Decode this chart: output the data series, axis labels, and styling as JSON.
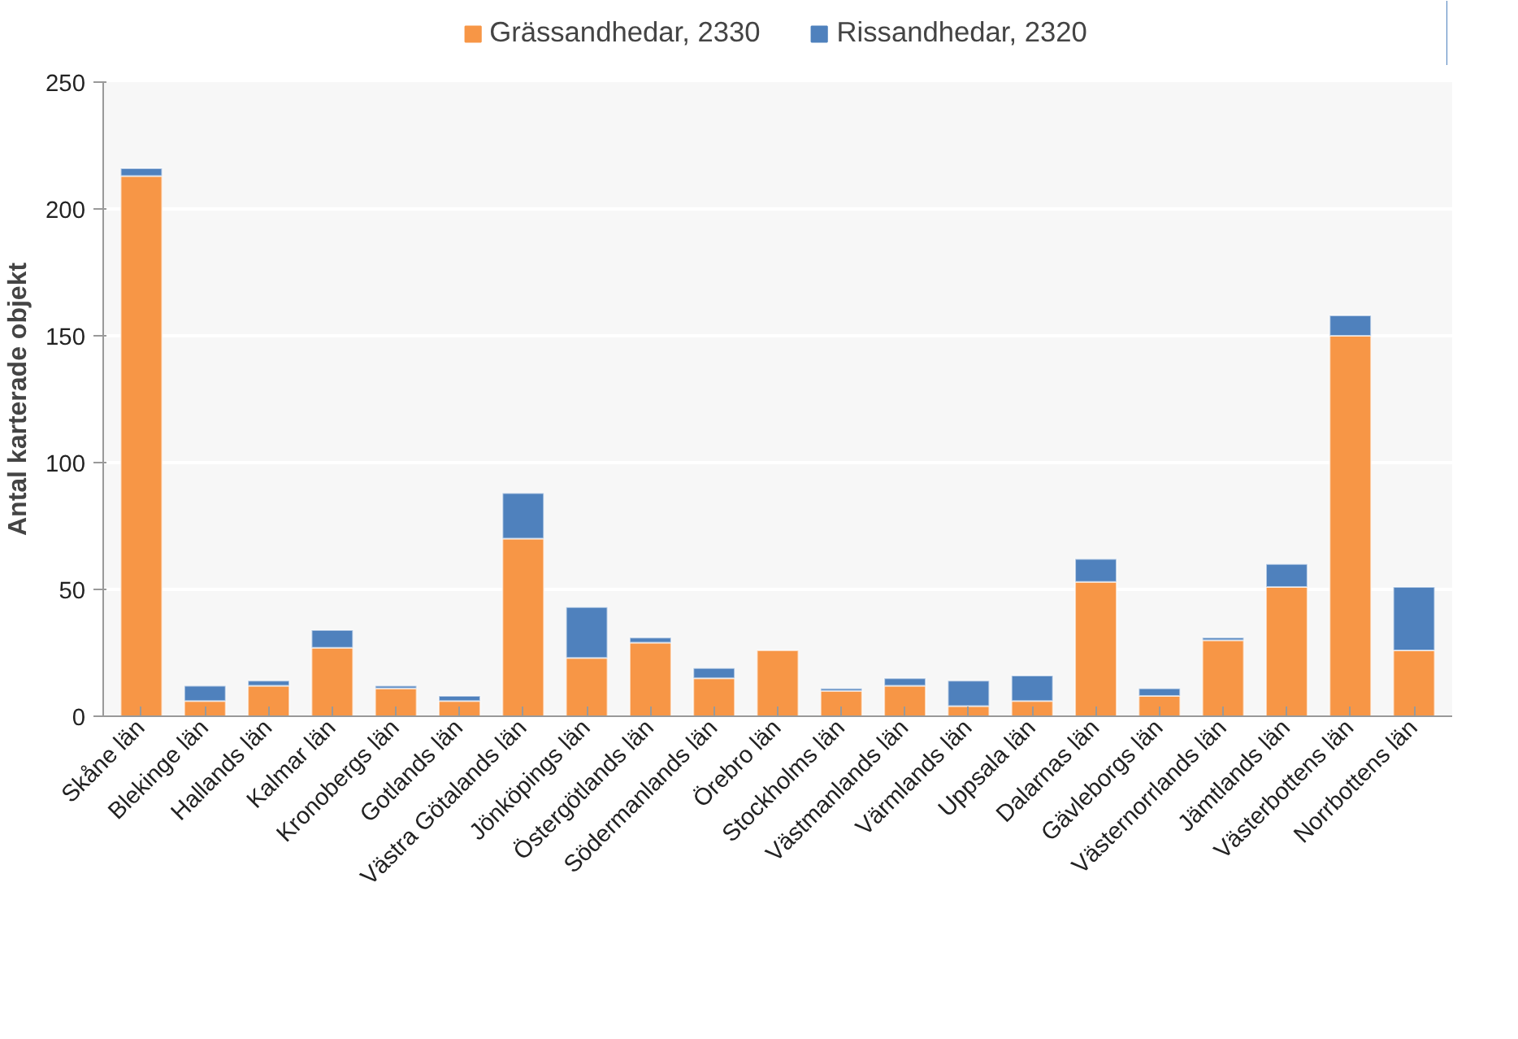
{
  "chart_data": {
    "type": "bar",
    "stacked": true,
    "ylabel": "Antal karterade objekt",
    "categories": [
      "Skåne län",
      "Blekinge län",
      "Hallands län",
      "Kalmar län",
      "Kronobergs län",
      "Gotlands län",
      "Västra Götalands län",
      "Jönköpings län",
      "Östergötlands län",
      "Södermanlands län",
      "Örebro län",
      "Stockholms län",
      "Västmanlands län",
      "Värmlands län",
      "Uppsala län",
      "Dalarnas län",
      "Gävleborgs län",
      "Västernorrlands län",
      "Jämtlands län",
      "Västerbottens län",
      "Norrbottens län"
    ],
    "series": [
      {
        "name": "Grässandhedar, 2330",
        "color": "#f79646",
        "values": [
          213,
          6,
          12,
          27,
          11,
          6,
          70,
          23,
          29,
          15,
          26,
          10,
          12,
          4,
          6,
          53,
          8,
          30,
          51,
          150,
          26
        ]
      },
      {
        "name": "Rissandhedar, 2320",
        "color": "#4f81bd",
        "values": [
          3,
          6,
          2,
          7,
          1,
          2,
          18,
          20,
          2,
          4,
          null,
          1,
          3,
          10,
          10,
          9,
          3,
          1,
          9,
          8,
          25
        ]
      }
    ],
    "ylim": [
      0,
      250
    ],
    "yticks": [
      0,
      50,
      100,
      150,
      200,
      250
    ],
    "grid": "y",
    "legend": "top"
  }
}
